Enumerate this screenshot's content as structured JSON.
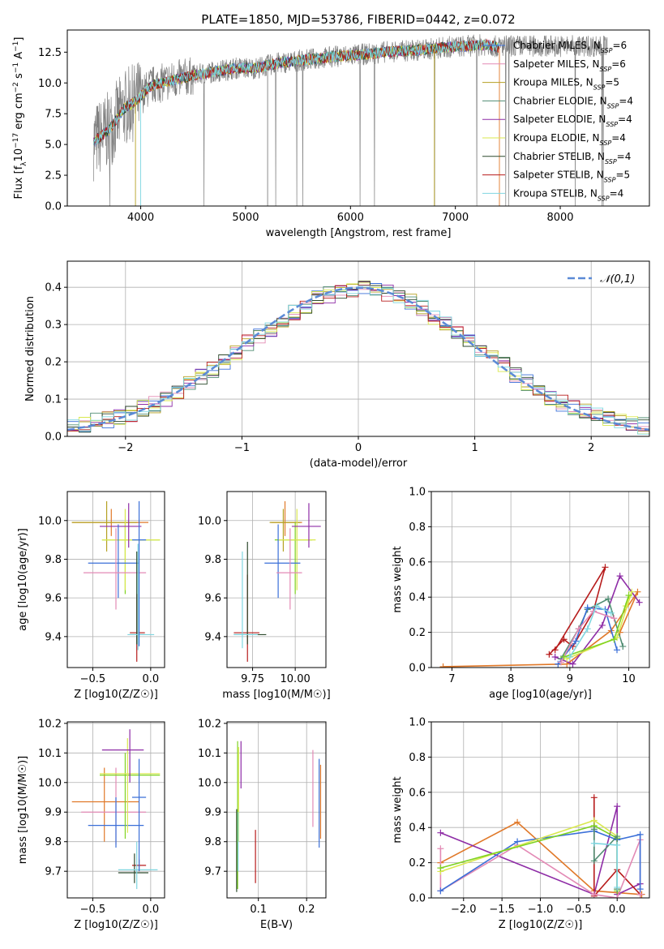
{
  "chart_data": [
    {
      "id": "spectrum",
      "type": "line",
      "title": "PLATE=1850, MJD=53786, FIBERID=0442, z=0.072",
      "xlabel": "wavelength [Angstrom, rest frame]",
      "ylabel": "Flux [f_λ10^-17 erg cm^-2 s^-1 A^-1]",
      "xlim": [
        3300,
        8850
      ],
      "ylim": [
        0,
        14.3
      ],
      "xticks": [
        4000,
        5000,
        6000,
        7000,
        8000
      ],
      "yticks": [
        0.0,
        2.5,
        5.0,
        7.5,
        10.0,
        12.5
      ],
      "grid": false,
      "legend": "right",
      "data_color": "#808080",
      "continuum": {
        "x": [
          3550,
          3700,
          3850,
          3950,
          4100,
          4300,
          4500,
          4700,
          4900,
          5100,
          5300,
          5500,
          5700,
          5900,
          6100,
          6300,
          6500,
          6700,
          6900,
          7100,
          7300,
          7420
        ],
        "y": [
          5.2,
          6.2,
          8.0,
          8.5,
          9.8,
          10.2,
          10.6,
          10.9,
          11.2,
          11.2,
          11.6,
          11.8,
          12.0,
          12.2,
          12.3,
          12.5,
          12.6,
          12.7,
          12.9,
          13.0,
          13.1,
          12.9
        ]
      },
      "series": [
        {
          "name": "Chabrier MILES, N_SSP=6",
          "color": "#3a6fd8"
        },
        {
          "name": "Salpeter MILES, N_SSP=6",
          "color": "#e38ab5"
        },
        {
          "name": "Kroupa MILES, N_SSP=5",
          "color": "#b5a122"
        },
        {
          "name": "Chabrier ELODIE, N_SSP=4",
          "color": "#4f8c72"
        },
        {
          "name": "Salpeter ELODIE, N_SSP=4",
          "color": "#8e2ca6"
        },
        {
          "name": "Kroupa ELODIE, N_SSP=4",
          "color": "#d9e84e"
        },
        {
          "name": "Chabrier STELIB, N_SSP=4",
          "color": "#2d4a2d"
        },
        {
          "name": "Salpeter STELIB, N_SSP=5",
          "color": "#b71c1c"
        },
        {
          "name": "Kroupa STELIB, N_SSP=4",
          "color": "#7fd6e0"
        }
      ]
    },
    {
      "id": "residuals",
      "type": "step",
      "xlabel": "(data-model)/error",
      "ylabel": "Normed distribution",
      "xlim": [
        -2.5,
        2.5
      ],
      "ylim": [
        0,
        0.47
      ],
      "xticks": [
        -2,
        -1,
        0,
        1,
        2
      ],
      "yticks": [
        0.0,
        0.1,
        0.2,
        0.3,
        0.4
      ],
      "grid": true,
      "legend": "top-right",
      "normal_curve": {
        "name": "𝒩(0,1)",
        "color": "#5b8ad6"
      },
      "bin_edges": [
        -2.5,
        -2.4,
        -2.3,
        -2.2,
        -2.1,
        -2.0,
        -1.9,
        -1.8,
        -1.7,
        -1.6,
        -1.5,
        -1.4,
        -1.3,
        -1.2,
        -1.1,
        -1.0,
        -0.9,
        -0.8,
        -0.7,
        -0.6,
        -0.5,
        -0.4,
        -0.3,
        -0.2,
        -0.1,
        0.0,
        0.1,
        0.2,
        0.3,
        0.4,
        0.5,
        0.6,
        0.7,
        0.8,
        0.9,
        1.0,
        1.1,
        1.2,
        1.3,
        1.4,
        1.5,
        1.6,
        1.7,
        1.8,
        1.9,
        2.0,
        2.1,
        2.2,
        2.3,
        2.4,
        2.5
      ],
      "histogram": [
        0.027,
        0.032,
        0.04,
        0.045,
        0.05,
        0.06,
        0.075,
        0.085,
        0.1,
        0.12,
        0.14,
        0.16,
        0.18,
        0.2,
        0.225,
        0.25,
        0.27,
        0.29,
        0.31,
        0.33,
        0.35,
        0.37,
        0.38,
        0.39,
        0.395,
        0.4,
        0.39,
        0.385,
        0.375,
        0.36,
        0.345,
        0.32,
        0.3,
        0.28,
        0.255,
        0.235,
        0.21,
        0.19,
        0.165,
        0.145,
        0.125,
        0.105,
        0.09,
        0.075,
        0.065,
        0.055,
        0.045,
        0.04,
        0.033,
        0.028
      ],
      "series_colors": [
        "#3a6fd8",
        "#e38ab5",
        "#b5a122",
        "#4f8c72",
        "#8e2ca6",
        "#d9e84e",
        "#2d4a2d",
        "#b71c1c",
        "#7fd6e0"
      ]
    },
    {
      "id": "age-vs-Z",
      "type": "errorbar",
      "xlabel": "Z [log10(Z/Z☉)]",
      "ylabel": "age [log10(age/yr)]",
      "xlim": [
        -0.72,
        0.12
      ],
      "ylim": [
        9.24,
        10.15
      ],
      "xticks": [
        -0.5,
        0.0
      ],
      "yticks": [
        9.4,
        9.6,
        9.8,
        10.0
      ],
      "grid": true,
      "points": [
        {
          "x": -0.34,
          "xlo": -0.68,
          "xhi": -0.02,
          "y": 9.99,
          "ylo": 9.92,
          "yhi": 10.06,
          "color": "#e07828"
        },
        {
          "x": -0.38,
          "xlo": -0.68,
          "xhi": -0.12,
          "y": 9.99,
          "ylo": 9.84,
          "yhi": 10.1,
          "color": "#b5a122"
        },
        {
          "x": -0.22,
          "xlo": -0.42,
          "xhi": 0.08,
          "y": 9.9,
          "ylo": 9.62,
          "yhi": 9.99,
          "color": "#7fd321"
        },
        {
          "x": -0.22,
          "xlo": -0.42,
          "xhi": 0.08,
          "y": 9.9,
          "ylo": 9.64,
          "yhi": 10.06,
          "color": "#d9e84e"
        },
        {
          "x": -0.19,
          "xlo": -0.44,
          "xhi": -0.08,
          "y": 9.97,
          "ylo": 9.86,
          "yhi": 10.09,
          "color": "#8e2ca6"
        },
        {
          "x": -0.28,
          "xlo": -0.54,
          "xhi": -0.1,
          "y": 9.78,
          "ylo": 9.6,
          "yhi": 9.98,
          "color": "#3a6fd8"
        },
        {
          "x": -0.3,
          "xlo": -0.58,
          "xhi": -0.04,
          "y": 9.73,
          "ylo": 9.54,
          "yhi": 9.96,
          "color": "#e38ab5"
        },
        {
          "x": -0.12,
          "xlo": -0.18,
          "xhi": -0.05,
          "y": 9.42,
          "ylo": 9.27,
          "yhi": 9.62,
          "color": "#b71c1c"
        },
        {
          "x": -0.12,
          "xlo": -0.18,
          "xhi": -0.05,
          "y": 9.41,
          "ylo": 9.36,
          "yhi": 9.84,
          "color": "#2d4a2d"
        },
        {
          "x": -0.11,
          "xlo": -0.2,
          "xhi": 0.03,
          "y": 9.41,
          "ylo": 9.33,
          "yhi": 9.88,
          "color": "#7fd6e0"
        },
        {
          "x": -0.1,
          "xlo": -0.16,
          "xhi": -0.04,
          "y": 9.9,
          "ylo": 9.35,
          "yhi": 10.1,
          "color": "#3a6fd8"
        }
      ]
    },
    {
      "id": "age-vs-mass",
      "type": "errorbar",
      "xlabel": "mass [log10(M/M☉)]",
      "ylabel": "",
      "xlim": [
        9.6,
        10.18
      ],
      "ylim": [
        9.24,
        10.15
      ],
      "xticks": [
        9.75,
        10.0
      ],
      "yticks": [
        9.4,
        9.6,
        9.8,
        10.0
      ],
      "grid": true,
      "points": [
        {
          "x": 9.94,
          "xlo": 9.86,
          "xhi": 10.04,
          "y": 9.99,
          "ylo": 9.92,
          "yhi": 10.1,
          "color": "#e07828"
        },
        {
          "x": 9.93,
          "xlo": 9.85,
          "xhi": 10.03,
          "y": 9.99,
          "ylo": 9.84,
          "yhi": 10.06,
          "color": "#b5a122"
        },
        {
          "x": 10.0,
          "xlo": 9.88,
          "xhi": 10.1,
          "y": 9.9,
          "ylo": 9.62,
          "yhi": 9.99,
          "color": "#7fd321"
        },
        {
          "x": 10.01,
          "xlo": 9.9,
          "xhi": 10.12,
          "y": 9.9,
          "ylo": 9.64,
          "yhi": 10.06,
          "color": "#d9e84e"
        },
        {
          "x": 10.08,
          "xlo": 9.98,
          "xhi": 10.15,
          "y": 9.97,
          "ylo": 9.86,
          "yhi": 10.09,
          "color": "#8e2ca6"
        },
        {
          "x": 9.9,
          "xlo": 9.82,
          "xhi": 10.03,
          "y": 9.78,
          "ylo": 9.6,
          "yhi": 9.98,
          "color": "#3a6fd8"
        },
        {
          "x": 9.97,
          "xlo": 9.89,
          "xhi": 10.04,
          "y": 9.73,
          "ylo": 9.54,
          "yhi": 9.96,
          "color": "#e38ab5"
        },
        {
          "x": 9.72,
          "xlo": 9.64,
          "xhi": 9.79,
          "y": 9.42,
          "ylo": 9.27,
          "yhi": 9.72,
          "color": "#b71c1c"
        },
        {
          "x": 9.72,
          "xlo": 9.64,
          "xhi": 9.83,
          "y": 9.41,
          "ylo": 9.36,
          "yhi": 9.89,
          "color": "#2d4a2d"
        },
        {
          "x": 9.69,
          "xlo": 9.64,
          "xhi": 9.78,
          "y": 9.41,
          "ylo": 9.34,
          "yhi": 9.84,
          "color": "#7fd6e0"
        }
      ]
    },
    {
      "id": "weight-vs-age",
      "type": "line",
      "xlabel": "age [log10(age/yr)]",
      "ylabel": "mass weight",
      "xlim": [
        6.65,
        10.35
      ],
      "ylim": [
        0,
        1.0
      ],
      "xticks": [
        7,
        8,
        9,
        10
      ],
      "yticks": [
        0.0,
        0.2,
        0.4,
        0.6,
        0.8,
        1.0
      ],
      "grid": true,
      "series": [
        {
          "color": "#e07828",
          "x": [
            6.85,
            8.95,
            9.7,
            10.15,
            9.85
          ],
          "y": [
            0.005,
            0.02,
            0.21,
            0.43,
            0.2
          ]
        },
        {
          "color": "#b71c1c",
          "x": [
            8.65,
            8.9,
            9.05,
            9.4,
            9.6,
            8.75
          ],
          "y": [
            0.075,
            0.16,
            0.12,
            0.32,
            0.57,
            0.1
          ]
        },
        {
          "color": "#8e2ca6",
          "x": [
            8.75,
            9.05,
            9.55,
            9.85,
            10.18
          ],
          "y": [
            0.06,
            0.02,
            0.24,
            0.52,
            0.37
          ]
        },
        {
          "color": "#4f8c72",
          "x": [
            8.85,
            9.15,
            9.3,
            9.65,
            9.9
          ],
          "y": [
            0.05,
            0.22,
            0.33,
            0.39,
            0.12
          ]
        },
        {
          "color": "#3a6fd8",
          "x": [
            8.8,
            9.1,
            9.3,
            9.6,
            9.8
          ],
          "y": [
            0.02,
            0.15,
            0.34,
            0.33,
            0.1
          ]
        },
        {
          "color": "#e38ab5",
          "x": [
            8.85,
            9.15,
            9.4,
            9.75
          ],
          "y": [
            0.03,
            0.22,
            0.32,
            0.28
          ]
        },
        {
          "color": "#d9e84e",
          "x": [
            8.95,
            9.8,
            10.05,
            9.95
          ],
          "y": [
            0.05,
            0.17,
            0.43,
            0.35
          ]
        },
        {
          "color": "#7fd321",
          "x": [
            8.9,
            9.75,
            10.0
          ],
          "y": [
            0.06,
            0.16,
            0.41
          ]
        },
        {
          "color": "#7fd6e0",
          "x": [
            9.0,
            9.3,
            9.45,
            9.7
          ],
          "y": [
            0.06,
            0.22,
            0.35,
            0.31
          ]
        }
      ]
    },
    {
      "id": "mass-vs-Z",
      "type": "errorbar",
      "xlabel": "Z [log10(Z/Z☉)]",
      "ylabel": "mass [log10(M/M☉)]",
      "xlim": [
        -0.72,
        0.12
      ],
      "ylim": [
        9.61,
        10.205
      ],
      "xticks": [
        -0.5,
        0.0
      ],
      "yticks": [
        9.7,
        9.8,
        9.9,
        10.0,
        10.1,
        10.2
      ],
      "grid": true,
      "points": [
        {
          "x": -0.4,
          "xlo": -0.68,
          "xhi": -0.1,
          "y": 9.935,
          "ylo": 9.8,
          "yhi": 10.05,
          "color": "#e07828"
        },
        {
          "x": -0.3,
          "xlo": -0.6,
          "xhi": -0.04,
          "y": 9.9,
          "ylo": 9.79,
          "yhi": 10.05,
          "color": "#e38ab5"
        },
        {
          "x": -0.3,
          "xlo": -0.54,
          "xhi": -0.06,
          "y": 9.855,
          "ylo": 9.78,
          "yhi": 9.95,
          "color": "#3a6fd8"
        },
        {
          "x": -0.22,
          "xlo": -0.44,
          "xhi": 0.08,
          "y": 10.025,
          "ylo": 9.81,
          "yhi": 10.1,
          "color": "#7fd321"
        },
        {
          "x": -0.2,
          "xlo": -0.44,
          "xhi": 0.08,
          "y": 10.03,
          "ylo": 9.83,
          "yhi": 10.15,
          "color": "#d9e84e"
        },
        {
          "x": -0.18,
          "xlo": -0.42,
          "xhi": -0.06,
          "y": 10.11,
          "ylo": 10.0,
          "yhi": 10.18,
          "color": "#8e2ca6"
        },
        {
          "x": -0.1,
          "xlo": -0.16,
          "xhi": -0.04,
          "y": 9.72,
          "ylo": 9.7,
          "yhi": 9.74,
          "color": "#b71c1c"
        },
        {
          "x": -0.14,
          "xlo": -0.28,
          "xhi": -0.02,
          "y": 9.695,
          "ylo": 9.66,
          "yhi": 9.76,
          "color": "#2d4a2d"
        },
        {
          "x": -0.12,
          "xlo": -0.28,
          "xhi": 0.06,
          "y": 9.705,
          "ylo": 9.64,
          "yhi": 9.8,
          "color": "#7fd6e0"
        },
        {
          "x": -0.1,
          "xlo": -0.16,
          "xhi": -0.04,
          "y": 9.95,
          "ylo": 9.7,
          "yhi": 10.08,
          "color": "#3a6fd8"
        }
      ]
    },
    {
      "id": "mass-vs-EBV",
      "type": "errorbar",
      "xlabel": "E(B-V)",
      "ylabel": "",
      "xlim": [
        0.035,
        0.24
      ],
      "ylim": [
        9.61,
        10.205
      ],
      "xticks": [
        0.1,
        0.2
      ],
      "yticks": [
        9.7,
        9.8,
        9.9,
        10.0,
        10.1,
        10.2
      ],
      "grid": true,
      "points": [
        {
          "x": 0.055,
          "y": 9.8,
          "ylo": 9.63,
          "yhi": 9.91,
          "color": "#2d4a2d"
        },
        {
          "x": 0.057,
          "y": 9.9,
          "ylo": 9.64,
          "yhi": 10.14,
          "color": "#7fd321"
        },
        {
          "x": 0.059,
          "y": 9.95,
          "ylo": 9.8,
          "yhi": 10.12,
          "color": "#d9e84e"
        },
        {
          "x": 0.058,
          "y": 9.82,
          "ylo": 9.7,
          "yhi": 9.9,
          "color": "#7fd6e0"
        },
        {
          "x": 0.064,
          "y": 10.06,
          "ylo": 9.98,
          "yhi": 10.14,
          "color": "#8e2ca6"
        },
        {
          "x": 0.094,
          "y": 9.74,
          "ylo": 9.66,
          "yhi": 9.84,
          "color": "#b71c1c"
        },
        {
          "x": 0.213,
          "y": 9.98,
          "ylo": 9.85,
          "yhi": 10.11,
          "color": "#e38ab5"
        },
        {
          "x": 0.226,
          "y": 9.93,
          "ylo": 9.78,
          "yhi": 10.08,
          "color": "#3a6fd8"
        },
        {
          "x": 0.229,
          "y": 9.95,
          "ylo": 9.81,
          "yhi": 10.06,
          "color": "#e07828"
        }
      ]
    },
    {
      "id": "weight-vs-Z",
      "type": "line",
      "xlabel": "Z [log10(Z/Z☉)]",
      "ylabel": "mass weight",
      "xlim": [
        -2.42,
        0.42
      ],
      "ylim": [
        0,
        1.0
      ],
      "xticks": [
        -2.0,
        -1.5,
        -1.0,
        -0.5,
        0.0
      ],
      "yticks": [
        0.0,
        0.2,
        0.4,
        0.6,
        0.8,
        1.0
      ],
      "grid": true,
      "series": [
        {
          "color": "#e07828",
          "x": [
            -2.3,
            -1.3,
            -0.3,
            0.3,
            0.32
          ],
          "y": [
            0.2,
            0.43,
            0.04,
            0.02,
            0.02
          ]
        },
        {
          "color": "#8e2ca6",
          "x": [
            -2.3,
            -0.3,
            0.0,
            0.0,
            0.3
          ],
          "y": [
            0.37,
            0.02,
            0.52,
            0.02,
            0.08
          ]
        },
        {
          "color": "#b71c1c",
          "x": [
            -0.3,
            -0.3,
            0.0,
            0.3
          ],
          "y": [
            0.57,
            0.01,
            0.16,
            0.02
          ]
        },
        {
          "color": "#e38ab5",
          "x": [
            -2.3,
            -2.3,
            -1.3,
            -0.3,
            0.0,
            0.3,
            0.3
          ],
          "y": [
            0.28,
            0.04,
            0.3,
            0.02,
            0.0,
            0.33,
            0.02
          ]
        },
        {
          "color": "#3a6fd8",
          "x": [
            -2.3,
            -1.3,
            -0.3,
            0.0,
            0.3,
            0.3
          ],
          "y": [
            0.04,
            0.32,
            0.38,
            0.33,
            0.36,
            0.05
          ]
        },
        {
          "color": "#d9e84e",
          "x": [
            -2.3,
            -0.3,
            0.0,
            0.0
          ],
          "y": [
            0.15,
            0.44,
            0.35,
            0.05
          ]
        },
        {
          "color": "#7fd321",
          "x": [
            -2.3,
            -0.3,
            0.0,
            0.0
          ],
          "y": [
            0.17,
            0.41,
            0.34,
            0.04
          ]
        },
        {
          "color": "#4f8c72",
          "x": [
            -0.3,
            -0.3,
            0.0,
            0.0
          ],
          "y": [
            0.39,
            0.21,
            0.35,
            0.05
          ]
        },
        {
          "color": "#7fd6e0",
          "x": [
            -0.3,
            0.0,
            0.0
          ],
          "y": [
            0.31,
            0.3,
            0.06
          ]
        }
      ]
    }
  ]
}
